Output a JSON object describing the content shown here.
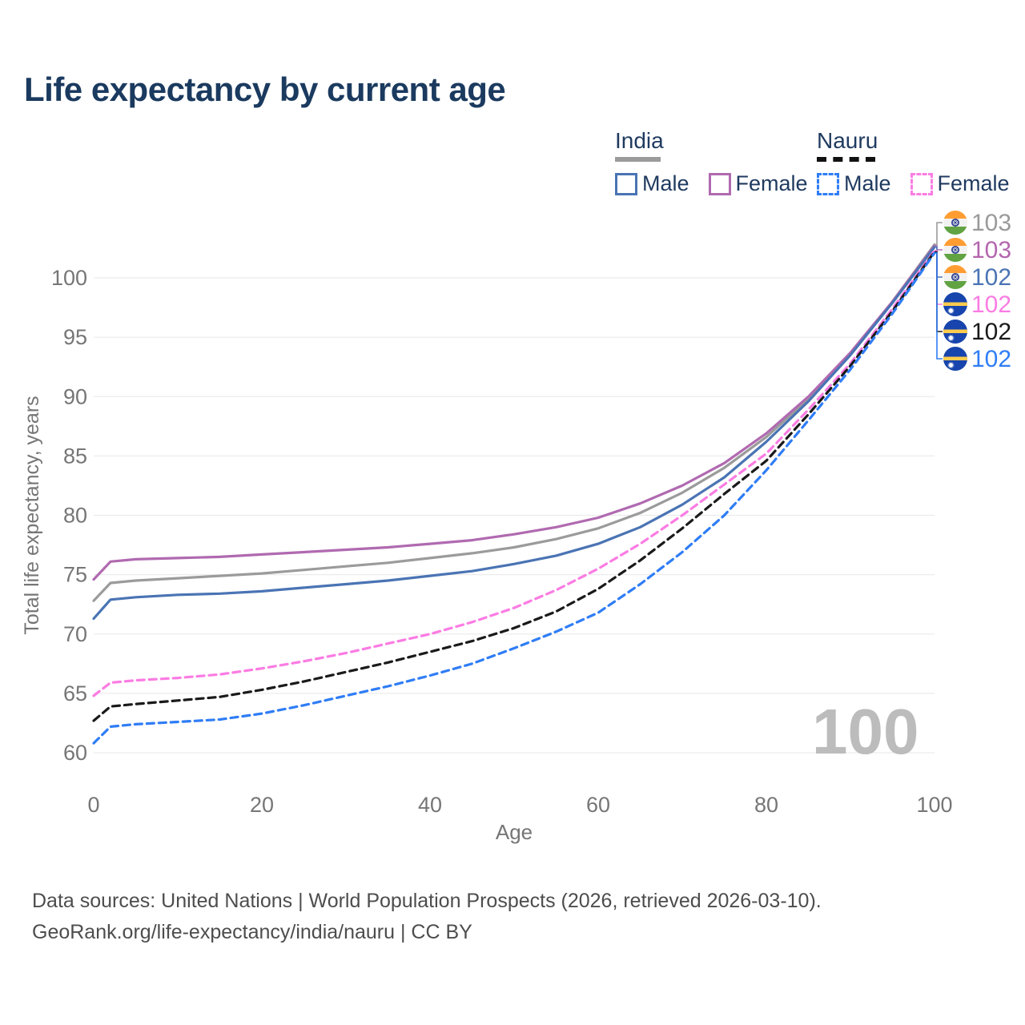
{
  "header": {
    "title": "Life expectancy by current age"
  },
  "legend": {
    "groups": [
      {
        "name": "India",
        "line_style": "solid",
        "sample_color": "#9b9b9b",
        "items": [
          {
            "label": "Male",
            "color": "#4a74b4"
          },
          {
            "label": "Female",
            "color": "#b06ab0"
          }
        ]
      },
      {
        "name": "Nauru",
        "line_style": "dashed",
        "sample_color": "#111111",
        "items": [
          {
            "label": "Male",
            "color": "#2f7df6"
          },
          {
            "label": "Female",
            "color": "#fb7ce3"
          }
        ]
      }
    ]
  },
  "watermark": "100",
  "footer": {
    "line1": "Data sources: United Nations | World Population Prospects (2026, retrieved 2026-03-10).",
    "line2": "GeoRank.org/life-expectancy/india/nauru | CC BY"
  },
  "chart_data": {
    "type": "line",
    "title": "Life expectancy by current age",
    "xlabel": "Age",
    "ylabel": "Total life expectancy, years",
    "xlim": [
      0,
      100
    ],
    "ylim": [
      60,
      103.5
    ],
    "x_ticks": [
      0,
      20,
      40,
      60,
      80,
      100
    ],
    "y_ticks": [
      60,
      65,
      70,
      75,
      80,
      85,
      90,
      95,
      100
    ],
    "grid": true,
    "legend_position": "top-right",
    "grid_color": "#ececec",
    "tick_color": "#767676",
    "x": [
      0,
      2,
      5,
      10,
      15,
      20,
      25,
      30,
      35,
      40,
      45,
      50,
      55,
      60,
      65,
      70,
      75,
      80,
      85,
      90,
      95,
      100
    ],
    "series": [
      {
        "id": "india-both",
        "name": "India",
        "country": "India",
        "sex": "Both",
        "flag": "india",
        "line": "solid",
        "color": "#9b9b9b",
        "values": [
          72.8,
          74.3,
          74.5,
          74.7,
          74.9,
          75.1,
          75.4,
          75.7,
          76.0,
          76.4,
          76.8,
          77.3,
          78.0,
          78.9,
          80.2,
          81.9,
          84.0,
          86.6,
          89.8,
          93.6,
          98.0,
          102.8
        ],
        "end_label": "103",
        "end_label_color": "#9a9a9a"
      },
      {
        "id": "india-female",
        "name": "India Female",
        "country": "India",
        "sex": "Female",
        "flag": "india",
        "line": "solid",
        "color": "#b06ab0",
        "values": [
          74.6,
          76.1,
          76.3,
          76.4,
          76.5,
          76.7,
          76.9,
          77.1,
          77.3,
          77.6,
          77.9,
          78.4,
          79.0,
          79.8,
          81.0,
          82.5,
          84.4,
          86.9,
          90.0,
          93.7,
          98.0,
          102.7
        ],
        "end_label": "103",
        "end_label_color": "#b465ae"
      },
      {
        "id": "india-male",
        "name": "India Male",
        "country": "India",
        "sex": "Male",
        "flag": "india",
        "line": "solid",
        "color": "#4a74b4",
        "values": [
          71.3,
          72.9,
          73.1,
          73.3,
          73.4,
          73.6,
          73.9,
          74.2,
          74.5,
          74.9,
          75.3,
          75.9,
          76.6,
          77.6,
          79.0,
          80.9,
          83.2,
          86.2,
          89.6,
          93.5,
          97.9,
          102.6
        ],
        "end_label": "102",
        "end_label_color": "#4a74b4"
      },
      {
        "id": "nauru-female",
        "name": "Nauru Female",
        "country": "Nauru",
        "sex": "Female",
        "flag": "nauru",
        "line": "dashed",
        "color": "#fb7ce3",
        "values": [
          64.8,
          65.9,
          66.1,
          66.3,
          66.6,
          67.1,
          67.7,
          68.4,
          69.2,
          70.0,
          71.0,
          72.2,
          73.7,
          75.5,
          77.6,
          80.0,
          82.6,
          85.2,
          88.9,
          92.8,
          97.4,
          102.3
        ],
        "end_label": "102",
        "end_label_color": "#fb7ce3"
      },
      {
        "id": "nauru-both",
        "name": "Nauru",
        "country": "Nauru",
        "sex": "Both",
        "flag": "nauru",
        "line": "dashed",
        "color": "#1a1a1a",
        "values": [
          62.7,
          63.9,
          64.1,
          64.4,
          64.7,
          65.3,
          66.0,
          66.8,
          67.6,
          68.5,
          69.4,
          70.5,
          71.9,
          73.8,
          76.2,
          78.9,
          81.8,
          84.6,
          88.5,
          92.6,
          97.2,
          102.2
        ],
        "end_label": "102",
        "end_label_color": "#1a1a1a"
      },
      {
        "id": "nauru-male",
        "name": "Nauru Male",
        "country": "Nauru",
        "sex": "Male",
        "flag": "nauru",
        "line": "dashed",
        "color": "#2f7df6",
        "values": [
          60.8,
          62.2,
          62.4,
          62.6,
          62.8,
          63.3,
          64.0,
          64.8,
          65.6,
          66.5,
          67.5,
          68.8,
          70.2,
          71.8,
          74.2,
          76.9,
          80.0,
          83.8,
          88.0,
          92.3,
          97.0,
          102.1
        ],
        "end_label": "102",
        "end_label_color": "#2f7df6"
      }
    ],
    "end_label_rows": [
      "india-both",
      "india-female",
      "india-male",
      "nauru-female",
      "nauru-both",
      "nauru-male"
    ]
  }
}
